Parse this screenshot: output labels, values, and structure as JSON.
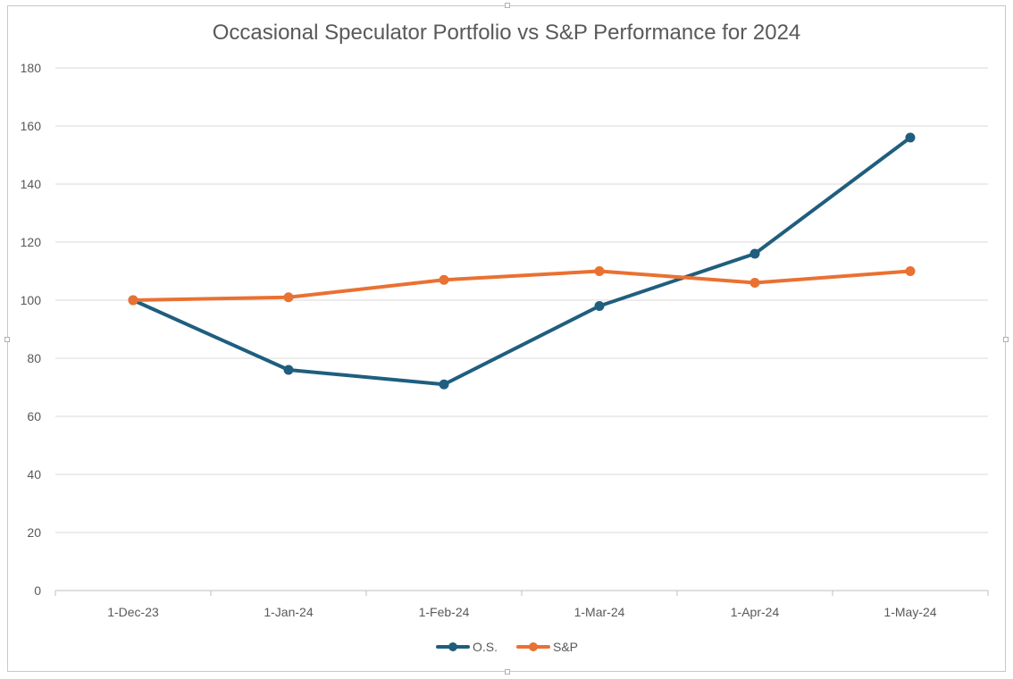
{
  "chart_data": {
    "type": "line",
    "title": "Occasional Speculator Portfolio vs S&P Performance for 2024",
    "categories": [
      "1-Dec-23",
      "1-Jan-24",
      "1-Feb-24",
      "1-Mar-24",
      "1-Apr-24",
      "1-May-24"
    ],
    "y_ticks": [
      "0",
      "20",
      "40",
      "60",
      "80",
      "100",
      "120",
      "140",
      "160",
      "180"
    ],
    "ylim": [
      0,
      180
    ],
    "grid": true,
    "legend_position": "bottom",
    "series": [
      {
        "name": "O.S.",
        "color": "#1f5e7e",
        "values": [
          100,
          76,
          71,
          98,
          116,
          156
        ]
      },
      {
        "name": "S&P",
        "color": "#e97132",
        "values": [
          100,
          101,
          107,
          110,
          106,
          110
        ]
      }
    ]
  }
}
